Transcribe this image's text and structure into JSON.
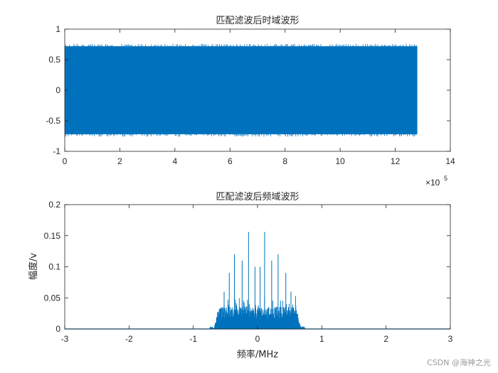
{
  "colors": {
    "series": "#0072BD",
    "axes": "#262626",
    "background": "#ffffff"
  },
  "watermark": "CSDN @海神之光",
  "chart_data": [
    {
      "type": "line",
      "title": "匹配滤波后时域波形",
      "xlabel": "",
      "ylabel": "",
      "xlim": [
        0,
        1400000
      ],
      "ylim": [
        -1,
        1
      ],
      "x_range": [
        0,
        1280000
      ],
      "x_ticks": [
        0,
        200000,
        400000,
        600000,
        800000,
        1000000,
        1200000,
        1400000
      ],
      "x_tick_labels": [
        "0",
        "2",
        "4",
        "6",
        "8",
        "10",
        "12",
        "14"
      ],
      "x_exponent_label": {
        "base": "×10",
        "exponent": "5"
      },
      "y_ticks": [
        -1,
        -0.5,
        0,
        0.5,
        1
      ],
      "y_tick_labels": [
        "-1",
        "-0.5",
        "0",
        "0.5",
        "1"
      ],
      "series": [
        {
          "envelope_max": 0.72,
          "envelope_min": -0.72,
          "peak_max": 0.76,
          "peak_min": -0.76
        }
      ],
      "grid": false,
      "box": true
    },
    {
      "type": "line",
      "title": "匹配滤波后频域波形",
      "xlabel": "频率/MHz",
      "ylabel": "幅度/v",
      "xlim": [
        -3,
        3
      ],
      "ylim": [
        0,
        0.2
      ],
      "x_ticks": [
        -3,
        -2,
        -1,
        0,
        1,
        2,
        3
      ],
      "x_tick_labels": [
        "-3",
        "-2",
        "-1",
        "0",
        "1",
        "2",
        "3"
      ],
      "y_ticks": [
        0,
        0.05,
        0.1,
        0.15,
        0.2
      ],
      "y_tick_labels": [
        "0",
        "0.05",
        "0.1",
        "0.15",
        "0.2"
      ],
      "series": [
        {
          "band": [
            -0.68,
            0.68
          ],
          "band_level": 0.03,
          "peaks": [
            {
              "x": -0.14,
              "y": 0.156
            },
            {
              "x": 0.11,
              "y": 0.156
            },
            {
              "x": -0.36,
              "y": 0.12
            },
            {
              "x": 0.32,
              "y": 0.12
            },
            {
              "x": -0.24,
              "y": 0.11
            },
            {
              "x": 0.22,
              "y": 0.11
            },
            {
              "x": -0.04,
              "y": 0.1
            },
            {
              "x": 0.04,
              "y": 0.1
            },
            {
              "x": -0.44,
              "y": 0.09
            },
            {
              "x": 0.44,
              "y": 0.09
            },
            {
              "x": -0.52,
              "y": 0.06
            },
            {
              "x": 0.52,
              "y": 0.06
            }
          ]
        }
      ],
      "grid": false,
      "box": true
    }
  ]
}
